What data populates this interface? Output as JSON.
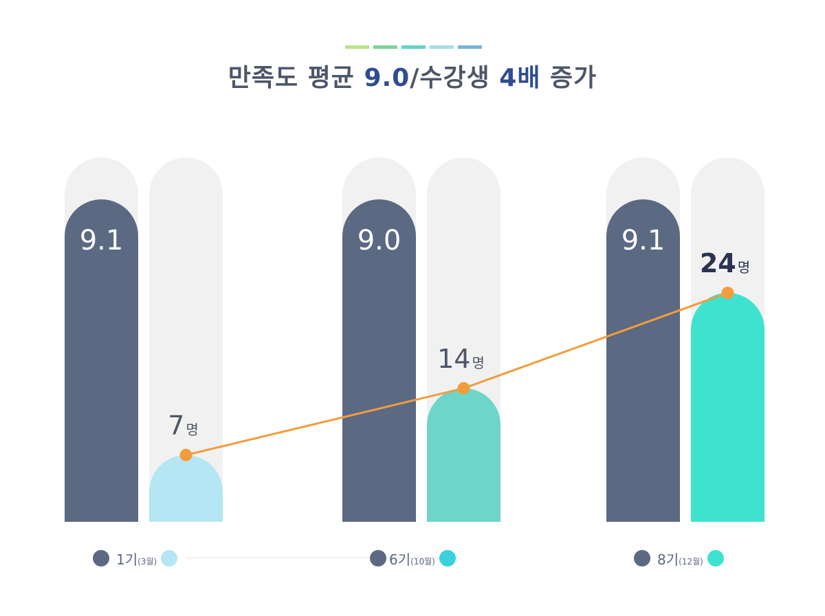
{
  "title": {
    "part1": "만족도 평균 ",
    "part2": "9.0",
    "part3": "/수강생 ",
    "part4": "4배",
    "part5": " 증가"
  },
  "colors": {
    "stripes": [
      "#b5e48c",
      "#7dd49a",
      "#63d3c6",
      "#a8dce8",
      "#7ab3e0"
    ],
    "satisfaction": "#5b6983",
    "track": "#f1f1f1",
    "line": "#f39c3c",
    "students": [
      "#b4e6f4",
      "#6dd5c9",
      "#3de3cf"
    ],
    "legend_dot_dark": "#5b6983",
    "legend_dot_light": [
      "#b4e6f4",
      "#3ad1de",
      "#3de3cf"
    ]
  },
  "chart_data": {
    "type": "bar",
    "categories": [
      "1기(3월)",
      "6기(10월)",
      "8기(12월)"
    ],
    "series": [
      {
        "values": [
          9.1,
          9.0,
          9.1
        ],
        "labels": [
          "9.1",
          "9.0",
          "9.1"
        ]
      },
      {
        "values": [
          7,
          14,
          24
        ],
        "labels": [
          "7",
          "14",
          "24"
        ],
        "unit": "명",
        "line": true
      }
    ],
    "xlabel": "",
    "ylabel": ""
  },
  "legend": [
    {
      "num": "1기",
      "month": "(3월)"
    },
    {
      "num": "6기",
      "month": "(10월)"
    },
    {
      "num": "8기",
      "month": "(12월)"
    }
  ]
}
